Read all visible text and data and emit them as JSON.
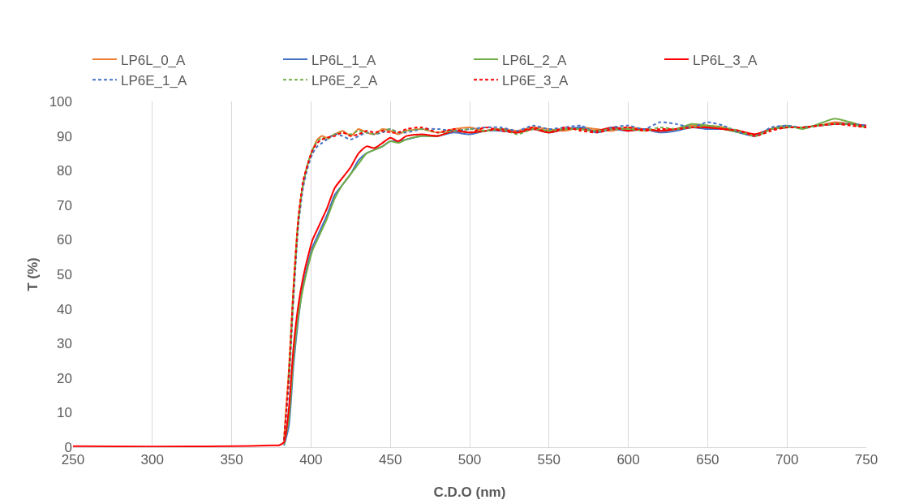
{
  "chart_data": {
    "type": "line",
    "xlabel": "C.D.O (nm)",
    "ylabel": "T (%)",
    "x": [
      250,
      300,
      350,
      375,
      380,
      383,
      386,
      389,
      392,
      395,
      398,
      401,
      404,
      407,
      410,
      415,
      420,
      425,
      430,
      435,
      440,
      445,
      450,
      455,
      460,
      470,
      480,
      490,
      500,
      510,
      520,
      530,
      540,
      550,
      560,
      570,
      580,
      590,
      600,
      610,
      620,
      630,
      640,
      650,
      660,
      670,
      680,
      690,
      700,
      710,
      720,
      730,
      740,
      750
    ],
    "xlim": [
      250,
      750
    ],
    "xticks": [
      250,
      300,
      350,
      400,
      450,
      500,
      550,
      600,
      650,
      700,
      750
    ],
    "ylim": [
      0,
      100
    ],
    "yticks": [
      0,
      10,
      20,
      30,
      40,
      50,
      60,
      70,
      80,
      90,
      100
    ],
    "grid": "x",
    "legend": "top",
    "marker": "none",
    "series": [
      {
        "name": "LP6L_0_A",
        "color": "#ed7d31",
        "line_style": "solid",
        "values": [
          null,
          null,
          null,
          null,
          null,
          2.5,
          22,
          47,
          66,
          76,
          82,
          86,
          89,
          90,
          89.5,
          90.5,
          91.5,
          90,
          92,
          91,
          90.5,
          92,
          91.5,
          90.5,
          91.5,
          92,
          91,
          92,
          92.5,
          91.5,
          92,
          91.5,
          92.5,
          92,
          91.5,
          92.5,
          92,
          91.5,
          92.5,
          92,
          91.5,
          92,
          93,
          93,
          92.5,
          91,
          90.5,
          92,
          92.5,
          92.5,
          93,
          94,
          93.5,
          92.5
        ]
      },
      {
        "name": "LP6L_1_A",
        "color": "#4472c4",
        "line_style": "solid",
        "values": [
          null,
          null,
          null,
          null,
          null,
          0.5,
          6,
          24,
          37,
          47,
          53,
          58,
          61,
          64,
          67,
          73,
          76,
          79,
          83,
          85,
          86,
          87,
          88.5,
          88.5,
          89,
          90,
          90,
          91,
          90.5,
          91.5,
          91.5,
          91,
          92,
          91,
          92,
          92.5,
          91,
          92,
          91.5,
          92,
          91,
          91.5,
          92.5,
          92,
          92,
          91,
          90,
          92,
          92.5,
          92.5,
          93,
          93.5,
          93.5,
          93
        ]
      },
      {
        "name": "LP6L_2_A",
        "color": "#70ad47",
        "line_style": "solid",
        "values": [
          null,
          null,
          null,
          null,
          null,
          0.8,
          8,
          26,
          38,
          46,
          52,
          57,
          60,
          63,
          66,
          72,
          76,
          79,
          82,
          85,
          86,
          87,
          88.5,
          88,
          89,
          90,
          90,
          91.5,
          91,
          91.5,
          92,
          91,
          92,
          91.5,
          92,
          92,
          91.5,
          92.5,
          92,
          92,
          91.5,
          92,
          93.5,
          93,
          92,
          91,
          90,
          92,
          93,
          92,
          93.5,
          95,
          94,
          92.5
        ]
      },
      {
        "name": "LP6L_3_A",
        "color": "#ff0000",
        "line_style": "solid",
        "values": [
          0.3,
          0.2,
          0.3,
          0.5,
          0.6,
          1.5,
          11,
          29,
          41,
          49,
          55,
          60,
          63,
          66,
          69,
          75,
          78,
          81,
          85,
          87,
          86.5,
          88,
          89.5,
          88.5,
          90,
          90.5,
          90,
          91.5,
          91,
          91.5,
          92,
          91,
          92,
          91,
          92,
          92,
          91.5,
          92.5,
          91.5,
          92,
          91.5,
          92,
          92.5,
          92.5,
          92,
          91.5,
          90.5,
          92,
          92.5,
          92.5,
          93,
          93.5,
          93.5,
          93
        ]
      },
      {
        "name": "LP6E_1_A",
        "color": "#4472c4",
        "line_style": "dashed",
        "values": [
          null,
          null,
          null,
          null,
          null,
          2,
          18,
          43,
          64,
          75,
          81,
          85,
          87,
          88,
          89,
          90.5,
          90,
          89,
          90,
          91,
          90.5,
          91,
          92,
          91,
          91,
          92,
          92,
          91.5,
          92,
          92.5,
          92.5,
          91.5,
          93,
          92,
          92.5,
          93,
          91,
          92.5,
          93,
          92,
          94,
          93.5,
          92.5,
          94,
          93,
          91,
          90,
          92.5,
          93,
          92.5,
          93,
          93.5,
          93.5,
          93
        ]
      },
      {
        "name": "LP6E_2_A",
        "color": "#70ad47",
        "line_style": "dashed",
        "values": [
          null,
          null,
          null,
          null,
          null,
          null,
          19,
          44,
          65,
          76,
          82,
          86,
          88.5,
          89.5,
          89,
          90.5,
          91,
          90.5,
          91.5,
          91,
          90.5,
          91.5,
          92,
          91,
          91.5,
          92,
          91,
          91.5,
          92,
          91.5,
          92,
          90.5,
          92,
          91.5,
          92,
          92,
          91.5,
          92,
          92,
          91.5,
          92.5,
          92,
          92.5,
          93,
          92.5,
          91.5,
          90,
          92,
          92.5,
          92.5,
          93,
          93.5,
          93.5,
          92.5
        ]
      },
      {
        "name": "LP6E_3_A",
        "color": "#ff0000",
        "line_style": "dashed",
        "values": [
          null,
          null,
          null,
          null,
          null,
          2,
          21,
          46,
          66,
          77,
          82,
          86,
          88,
          89,
          89.5,
          90,
          91,
          90,
          90.5,
          91.5,
          91,
          91.5,
          91,
          91,
          92,
          92.5,
          91,
          92,
          91,
          92.5,
          91.5,
          91,
          92.5,
          91,
          92.5,
          91.5,
          91,
          92,
          92.5,
          91.5,
          92,
          92,
          92.5,
          92.5,
          92,
          91.5,
          90,
          91.5,
          92.5,
          92.5,
          93,
          93.5,
          93,
          92.5
        ]
      }
    ]
  }
}
